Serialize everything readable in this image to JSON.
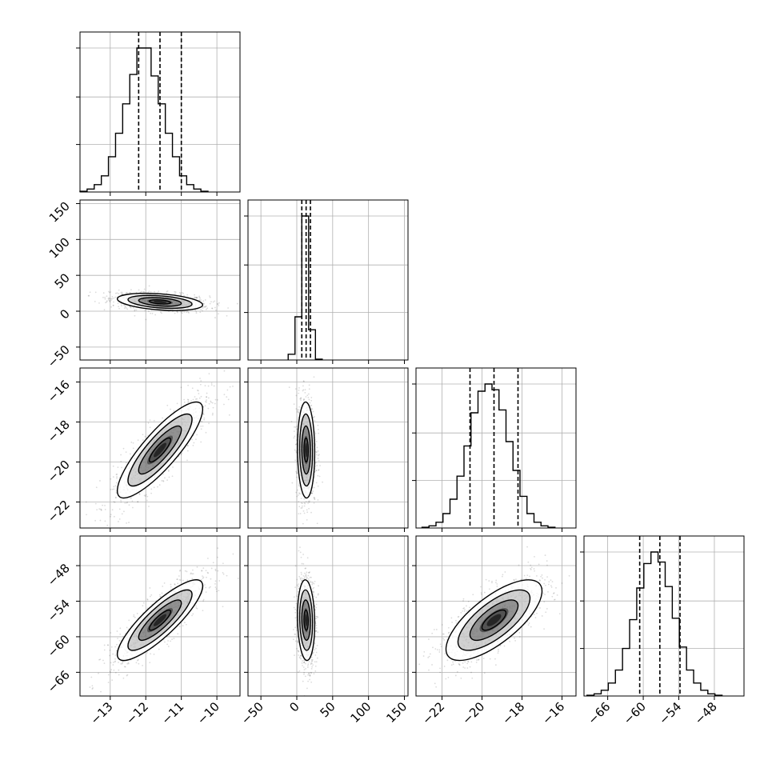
{
  "chart_data": {
    "type": "corner",
    "grid": true,
    "parameters": [
      {
        "ticks": [
          -13,
          -12,
          -11,
          -10
        ],
        "tick_labels": [
          "−13",
          "−12",
          "−11",
          "−10"
        ],
        "range": [
          -13.85,
          -9.35
        ],
        "quantiles": [
          -12.2,
          -11.6,
          -11.0
        ],
        "hist_left": -13.85,
        "hist_width": 0.2,
        "hist_counts": [
          0.5,
          2,
          5,
          11,
          24,
          40,
          60,
          80,
          98,
          98,
          79,
          60,
          40,
          24,
          11,
          5,
          2,
          0.5
        ]
      },
      {
        "ticks": [
          -50,
          0,
          50,
          100,
          150
        ],
        "tick_labels": [
          "−50",
          "0",
          "50",
          "100",
          "150"
        ],
        "range": [
          -68,
          155
        ],
        "quantiles": [
          7,
          13,
          19
        ],
        "hist_left": -12,
        "hist_width": 9.5,
        "hist_counts": [
          4,
          30,
          100,
          21,
          0.6
        ]
      },
      {
        "ticks": [
          -22,
          -20,
          -18,
          -16
        ],
        "tick_labels": [
          "−22",
          "−20",
          "−18",
          "−16"
        ],
        "range": [
          -23.3,
          -15.3
        ],
        "quantiles": [
          -20.6,
          -19.4,
          -18.2
        ],
        "hist_left": -23.0,
        "hist_width": 0.35,
        "hist_counts": [
          0.5,
          1.5,
          4,
          10,
          20,
          36,
          57,
          80,
          95,
          100,
          96,
          82,
          60,
          40,
          22,
          10,
          4,
          1.5,
          0.5
        ]
      },
      {
        "ticks": [
          -66,
          -60,
          -54,
          -48
        ],
        "tick_labels": [
          "−66",
          "−60",
          "−54",
          "−48"
        ],
        "range": [
          -70,
          -43
        ],
        "quantiles": [
          -60.6,
          -57.2,
          -53.8
        ],
        "hist_left": -69.5,
        "hist_width": 1.2,
        "hist_counts": [
          0.5,
          1.5,
          4,
          9,
          18,
          33,
          53,
          75,
          92,
          100,
          93,
          76,
          54,
          34,
          18,
          9,
          4,
          1.5,
          0.5
        ]
      }
    ],
    "hist_axis_ticks": [
      0.33,
      0.66,
      1.0
    ],
    "correlations": {
      "1-0": -0.35,
      "2-0": 0.85,
      "2-1": -0.05,
      "3-0": 0.85,
      "3-1": -0.1,
      "3-2": 0.72
    },
    "means": [
      -11.6,
      13,
      -19.4,
      -57.2
    ],
    "stds": [
      0.6,
      6,
      1.2,
      3.4
    ],
    "density_sigma_levels": [
      0.5,
      1.0,
      1.5,
      2.0
    ]
  }
}
